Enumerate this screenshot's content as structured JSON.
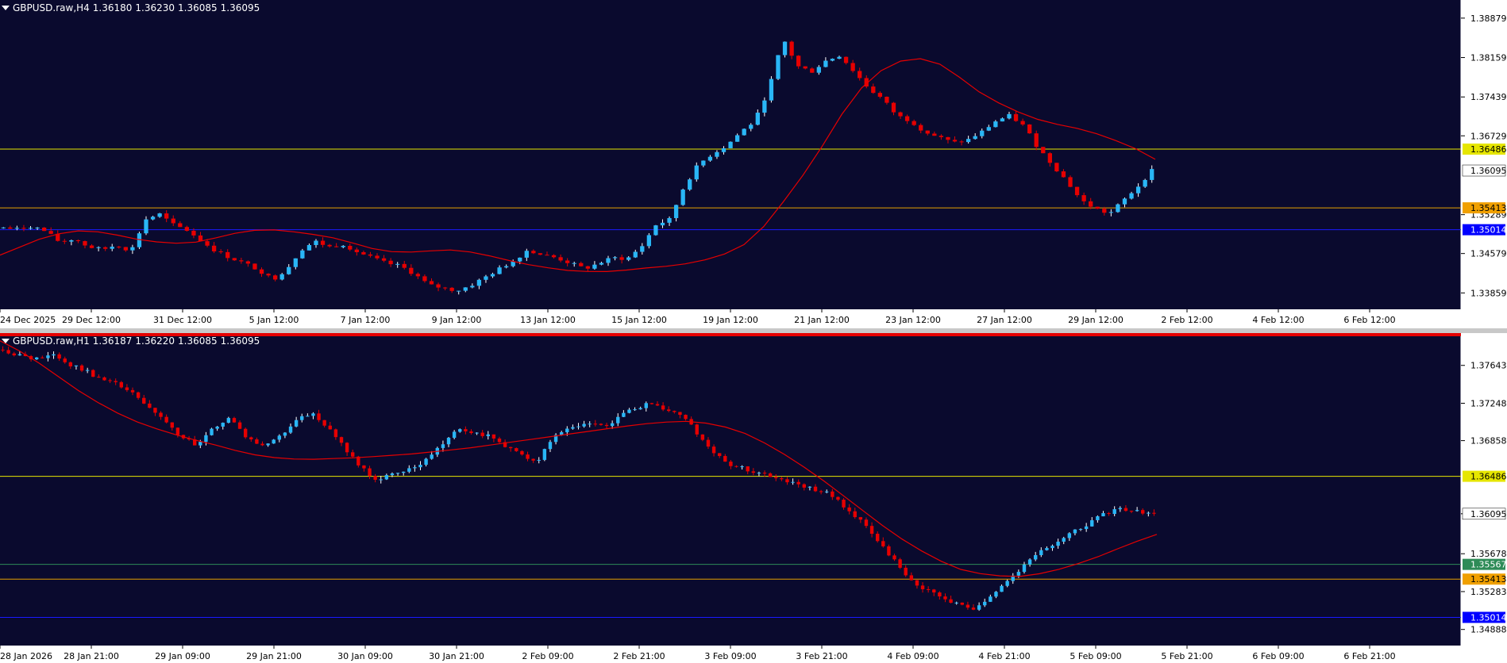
{
  "chart_data": [
    {
      "type": "candlestick",
      "symbol": "GBPUSD.raw",
      "timeframe": "H4",
      "title": "GBPUSD.raw,H4",
      "ohlc": {
        "open": "1.36180",
        "high": "1.36230",
        "low": "1.36085",
        "close": "1.36095"
      },
      "price_labels": [
        "1.38879",
        "1.38159",
        "1.37439",
        "1.36729",
        "1.35289",
        "1.34579",
        "1.33859"
      ],
      "time_labels": [
        "24 Dec 2025",
        "29 Dec 12:00",
        "31 Dec 12:00",
        "5 Jan 12:00",
        "7 Jan 12:00",
        "9 Jan 12:00",
        "13 Jan 12:00",
        "15 Jan 12:00",
        "19 Jan 12:00",
        "21 Jan 12:00",
        "23 Jan 12:00",
        "27 Jan 12:00",
        "29 Jan 12:00",
        "2 Feb 12:00",
        "4 Feb 12:00",
        "6 Feb 12:00"
      ],
      "ylim": [
        1.3356,
        1.3921
      ],
      "levels": [
        {
          "price": 1.36486,
          "label": "1.36486",
          "color": "#e6e600",
          "label_bg": "#e6e600",
          "label_fg": "#000000"
        },
        {
          "price": 1.35413,
          "label": "1.35413",
          "color": "#e6a000",
          "label_bg": "#f0a000",
          "label_fg": "#000000"
        },
        {
          "price": 1.35014,
          "label": "1.35014",
          "color": "#1a1aff",
          "label_bg": "#0000ff",
          "label_fg": "#ffffff"
        }
      ],
      "current_price": "1.36095",
      "close_path": [
        1.3505,
        1.3502,
        1.3508,
        1.3498,
        1.3478,
        1.3485,
        1.347,
        1.3465,
        1.3474,
        1.3462,
        1.352,
        1.353,
        1.351,
        1.35,
        1.348,
        1.3462,
        1.345,
        1.344,
        1.3428,
        1.341,
        1.343,
        1.3465,
        1.348,
        1.347,
        1.3475,
        1.346,
        1.345,
        1.344,
        1.3435,
        1.342,
        1.34,
        1.3395,
        1.339,
        1.34,
        1.3415,
        1.343,
        1.3445,
        1.3465,
        1.3455,
        1.345,
        1.344,
        1.343,
        1.344,
        1.345,
        1.3448,
        1.347,
        1.351,
        1.352,
        1.358,
        1.362,
        1.364,
        1.3655,
        1.368,
        1.37,
        1.376,
        1.385,
        1.38,
        1.379,
        1.381,
        1.382,
        1.379,
        1.376,
        1.374,
        1.371,
        1.37,
        1.368,
        1.367,
        1.366,
        1.3665,
        1.368,
        1.37,
        1.371,
        1.369,
        1.365,
        1.362,
        1.359,
        1.3555,
        1.354,
        1.353,
        1.3555,
        1.358,
        1.361
      ],
      "ma_path": [
        1.3455,
        1.347,
        1.3485,
        1.3495,
        1.35,
        1.3497,
        1.349,
        1.3482,
        1.3478,
        1.3476,
        1.348,
        1.349,
        1.3498,
        1.3502,
        1.35,
        1.3495,
        1.349,
        1.3482,
        1.347,
        1.3462,
        1.346,
        1.3462,
        1.3465,
        1.3462,
        1.3455,
        1.3446,
        1.3438,
        1.3432,
        1.3427,
        1.3425,
        1.3425,
        1.3428,
        1.3432,
        1.3435,
        1.344,
        1.3448,
        1.346,
        1.348,
        1.352,
        1.357,
        1.362,
        1.368,
        1.374,
        1.378,
        1.3805,
        1.3815,
        1.3812,
        1.379,
        1.376,
        1.3738,
        1.372,
        1.3705,
        1.3695,
        1.3688,
        1.3678,
        1.3665,
        1.365,
        1.363
      ]
    },
    {
      "type": "candlestick",
      "symbol": "GBPUSD.raw",
      "timeframe": "H1",
      "title": "GBPUSD.raw,H1",
      "ohlc": {
        "open": "1.36187",
        "high": "1.36220",
        "low": "1.36085",
        "close": "1.36095"
      },
      "price_labels": [
        "1.37643",
        "1.37248",
        "1.36858",
        "1.36095",
        "1.35678",
        "1.35283",
        "1.34888"
      ],
      "time_labels": [
        "28 Jan 2026",
        "28 Jan 21:00",
        "29 Jan 09:00",
        "29 Jan 21:00",
        "30 Jan 09:00",
        "30 Jan 21:00",
        "2 Feb 09:00",
        "2 Feb 21:00",
        "3 Feb 09:00",
        "3 Feb 21:00",
        "4 Feb 09:00",
        "4 Feb 21:00",
        "5 Feb 09:00",
        "5 Feb 21:00",
        "6 Feb 09:00",
        "6 Feb 21:00"
      ],
      "ylim": [
        1.3472,
        1.3798
      ],
      "levels": [
        {
          "price": 1.36486,
          "label": "1.36486",
          "color": "#e6e600",
          "label_bg": "#e6e600",
          "label_fg": "#000000"
        },
        {
          "price": 1.35567,
          "label": "1.35567",
          "color": "#2e8b57",
          "label_bg": "#2e8b57",
          "label_fg": "#ffffff"
        },
        {
          "price": 1.35413,
          "label": "1.35413",
          "color": "#e6a000",
          "label_bg": "#f0a000",
          "label_fg": "#000000"
        },
        {
          "price": 1.35014,
          "label": "1.35014",
          "color": "#1a1aff",
          "label_bg": "#0000ff",
          "label_fg": "#ffffff"
        }
      ],
      "current_price": "1.36095",
      "close_path": [
        1.378,
        1.3775,
        1.377,
        1.3778,
        1.3765,
        1.376,
        1.375,
        1.3745,
        1.3735,
        1.372,
        1.3705,
        1.369,
        1.368,
        1.37,
        1.371,
        1.369,
        1.368,
        1.369,
        1.3705,
        1.3715,
        1.37,
        1.368,
        1.366,
        1.3645,
        1.365,
        1.3655,
        1.3665,
        1.368,
        1.37,
        1.3695,
        1.369,
        1.368,
        1.367,
        1.3665,
        1.369,
        1.37,
        1.3705,
        1.37,
        1.371,
        1.372,
        1.3725,
        1.3718,
        1.371,
        1.369,
        1.367,
        1.366,
        1.3655,
        1.365,
        1.3645,
        1.364,
        1.3635,
        1.363,
        1.3615,
        1.36,
        1.358,
        1.356,
        1.354,
        1.353,
        1.352,
        1.3515,
        1.351,
        1.3525,
        1.354,
        1.3555,
        1.357,
        1.358,
        1.359,
        1.36,
        1.361,
        1.3615,
        1.3612,
        1.361
      ],
      "ma_path": [
        1.379,
        1.3775,
        1.3755,
        1.3735,
        1.3718,
        1.3705,
        1.3695,
        1.3687,
        1.368,
        1.3672,
        1.3668,
        1.3666,
        1.3667,
        1.3668,
        1.367,
        1.3672,
        1.3675,
        1.3678,
        1.3682,
        1.3686,
        1.369,
        1.3694,
        1.3698,
        1.3702,
        1.3705,
        1.3706,
        1.3703,
        1.3694,
        1.368,
        1.3662,
        1.3642,
        1.362,
        1.3598,
        1.3578,
        1.3562,
        1.355,
        1.3545,
        1.3544,
        1.3548,
        1.3556,
        1.3566,
        1.3578,
        1.3588
      ]
    }
  ]
}
